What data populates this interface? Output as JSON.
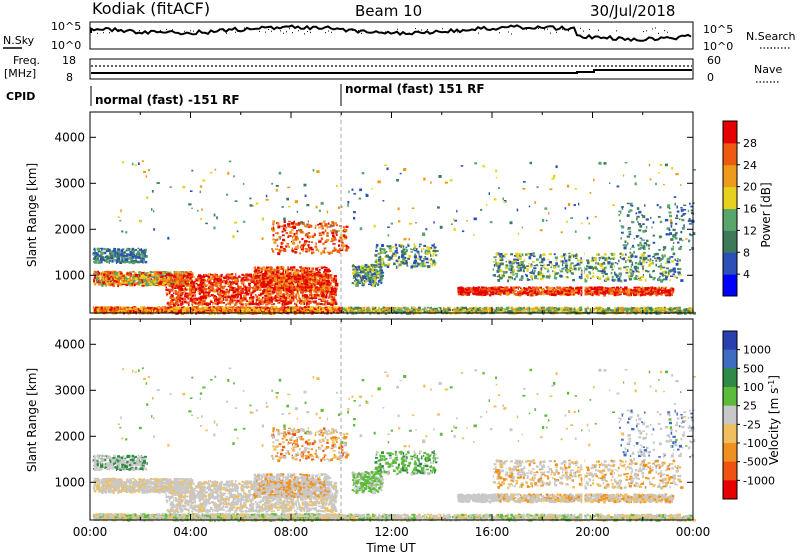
{
  "header": {
    "station": "Kodiak (fitACF)",
    "beam": "Beam 10",
    "date": "30/Jul/2018"
  },
  "noise_panel": {
    "left_label": "N.Sky",
    "right_label": "N.Search",
    "left_ticks": [
      "10^5",
      "10^0"
    ],
    "right_ticks": [
      "10^5",
      "10^0"
    ]
  },
  "freq_panel": {
    "left_label_1": "Freq.",
    "left_label_2": "[MHz]",
    "left_ticks": [
      "18",
      "8"
    ],
    "right_label": "Nave",
    "right_ticks": [
      "60",
      "0"
    ]
  },
  "cpid": {
    "label": "CPID",
    "segments": [
      {
        "start_hour": 0,
        "text": "normal (fast) -151 RF"
      },
      {
        "start_hour": 10,
        "text": "normal (fast) 151 RF"
      }
    ]
  },
  "chart_data": [
    {
      "type": "heatmap",
      "name": "power",
      "ylabel": "Slant Range [km]",
      "xlabel": "",
      "x_range_hours": [
        0,
        24
      ],
      "ylim": [
        180,
        4550
      ],
      "y_ticks": [
        1000,
        2000,
        3000,
        4000
      ],
      "colorbar": {
        "label": "Power [dB]",
        "ticks": [
          "4",
          "8",
          "12",
          "16",
          "20",
          "24",
          "28"
        ],
        "colors": [
          "#0000ff",
          "#2d4fb8",
          "#3c7a5a",
          "#58a66b",
          "#e6d21e",
          "#ee9a1a",
          "#ee5a10",
          "#e60000"
        ]
      }
    },
    {
      "type": "heatmap",
      "name": "velocity",
      "ylabel": "Slant Range [km]",
      "xlabel": "Time UT",
      "x_range_hours": [
        0,
        24
      ],
      "x_ticks": [
        "00:00",
        "04:00",
        "08:00",
        "12:00",
        "16:00",
        "20:00",
        "00:00"
      ],
      "ylim": [
        180,
        4550
      ],
      "y_ticks": [
        1000,
        2000,
        3000,
        4000
      ],
      "colorbar": {
        "label": "Velocity [m s",
        "label_sup": "-1",
        "label_close": "]",
        "ticks": [
          "1000",
          "500",
          "100",
          "25",
          "-25",
          "-100",
          "-500",
          "-1000"
        ],
        "colors": [
          "#2a3fb0",
          "#3e6cc2",
          "#2e8a44",
          "#5dbb3a",
          "#c8c8c8",
          "#f0c060",
          "#f09020",
          "#f05010",
          "#e60000"
        ]
      }
    }
  ]
}
